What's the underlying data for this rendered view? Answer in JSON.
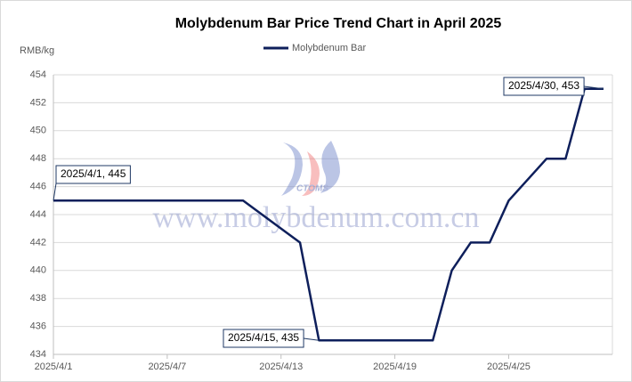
{
  "chart_data": {
    "type": "line",
    "title": "Molybdenum Bar Price Trend Chart in April 2025",
    "y_label": "RMB/kg",
    "watermark": "www.molybdenum.com.cn",
    "logo_text": "CTOMS",
    "x": [
      "2025/4/1",
      "2025/4/11",
      "2025/4/14",
      "2025/4/15",
      "2025/4/21",
      "2025/4/22",
      "2025/4/23",
      "2025/4/24",
      "2025/4/25",
      "2025/4/27",
      "2025/4/28",
      "2025/4/29",
      "2025/4/30"
    ],
    "series": [
      {
        "name": "Molybdenum Bar",
        "color": "#0e1f5b",
        "values": [
          445,
          445,
          442,
          435,
          435,
          440,
          442,
          442,
          445,
          448,
          448,
          453,
          453
        ]
      }
    ],
    "xlim": [
      "2025/4/1",
      "2025/4/30"
    ],
    "xticks": [
      "2025/4/1",
      "2025/4/7",
      "2025/4/13",
      "2025/4/19",
      "2025/4/25"
    ],
    "ylim": [
      434,
      454
    ],
    "yticks": [
      434,
      436,
      438,
      440,
      442,
      444,
      446,
      448,
      450,
      452,
      454
    ],
    "grid": true,
    "legend": "top",
    "annotations": [
      "2025/4/1, 445",
      "2025/4/15, 435",
      "2025/4/30, 453"
    ]
  }
}
